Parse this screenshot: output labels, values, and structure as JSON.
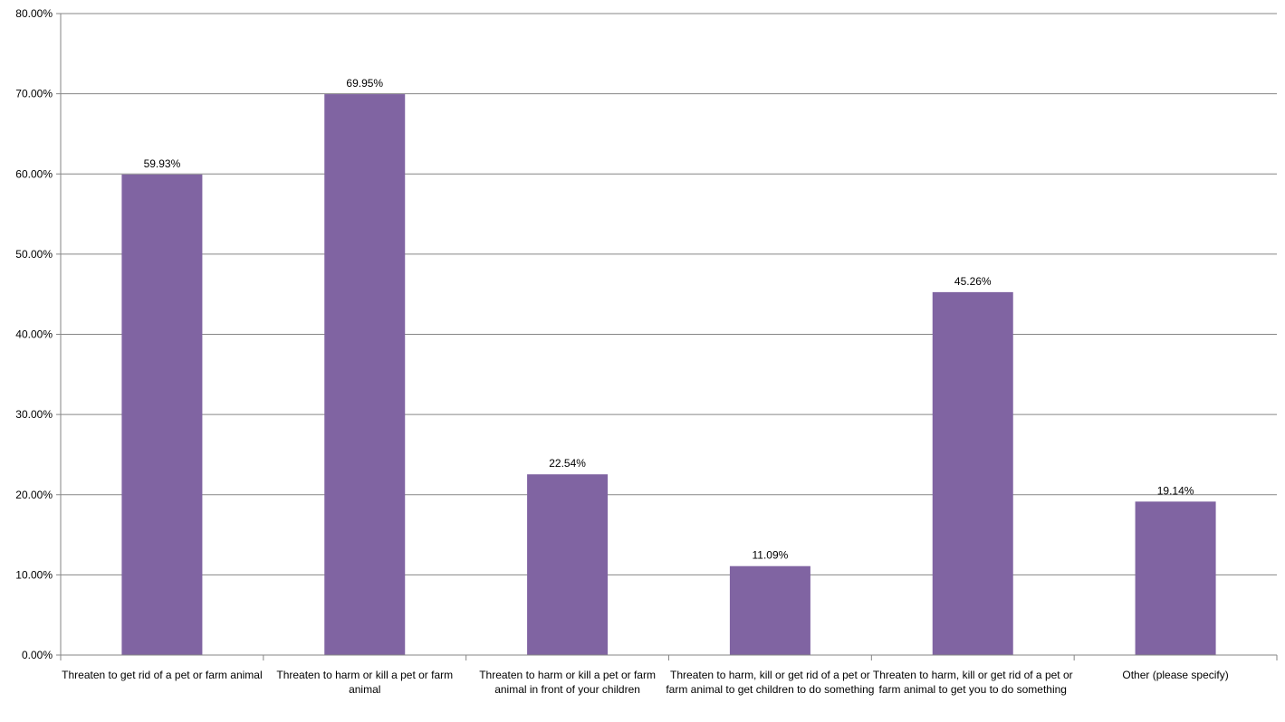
{
  "chart_data": {
    "type": "bar",
    "categories": [
      "Threaten to get rid of a pet or farm animal",
      "Threaten to harm or kill a pet or farm animal",
      "Threaten to harm or kill a pet or farm animal in front of your children",
      "Threaten to harm, kill or get rid of a pet or farm animal to get children to do something",
      "Threaten to harm, kill or get rid of a pet or farm animal to get you to do something",
      "Other (please specify)"
    ],
    "values": [
      59.93,
      69.95,
      22.54,
      11.09,
      45.26,
      19.14
    ],
    "data_labels": [
      "59.93%",
      "69.95%",
      "22.54%",
      "11.09%",
      "45.26%",
      "19.14%"
    ],
    "title": "",
    "xlabel": "",
    "ylabel": "",
    "ylim": [
      0,
      80
    ],
    "y_ticks": [
      0,
      10,
      20,
      30,
      40,
      50,
      60,
      70,
      80
    ],
    "y_tick_labels": [
      "0.00%",
      "10.00%",
      "20.00%",
      "30.00%",
      "40.00%",
      "50.00%",
      "60.00%",
      "70.00%",
      "80.00%"
    ],
    "grid": true,
    "bar_color": "#8064A2",
    "grid_color": "#868686"
  }
}
